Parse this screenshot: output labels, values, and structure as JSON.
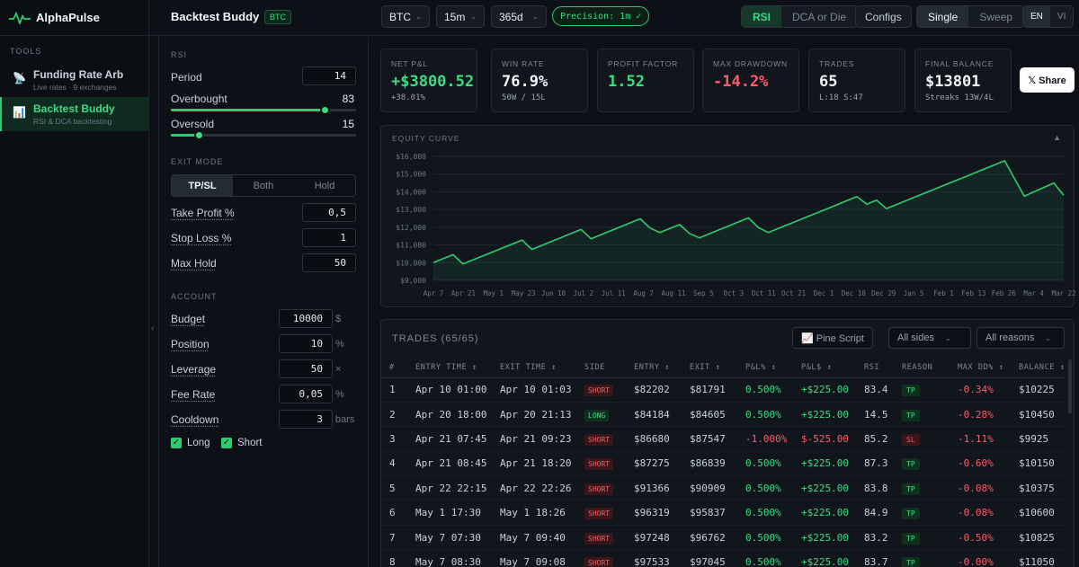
{
  "brand": {
    "name": "AlphaPulse"
  },
  "sidebar": {
    "section": "TOOLS",
    "items": [
      {
        "label": "Funding Rate Arb",
        "sub": "Live rates · 9 exchanges",
        "icon": "satellite-icon"
      },
      {
        "label": "Backtest Buddy",
        "sub": "RSI & DCA backtesting",
        "icon": "bar-chart-icon"
      }
    ]
  },
  "header": {
    "title": "Backtest Buddy",
    "badge": "BTC",
    "asset": "BTC",
    "interval": "15m",
    "range": "365d",
    "precision": "Precision: 1m ✓",
    "strategy_tabs": [
      "RSI",
      "DCA or Die"
    ],
    "configs": "Configs",
    "mode_tabs": [
      "Single",
      "Sweep"
    ],
    "lang_tabs": [
      "EN",
      "VI"
    ]
  },
  "params": {
    "rsi_section": "RSI",
    "period_label": "Period",
    "period": "14",
    "overbought_label": "Overbought",
    "overbought": "83",
    "oversold_label": "Oversold",
    "oversold": "15",
    "overbought_level": 0.83,
    "oversold_level": 0.15,
    "exit_section": "EXIT MODE",
    "exit_modes": [
      "TP/SL",
      "Both",
      "Hold"
    ],
    "tp_label": "Take Profit %",
    "tp": "0,5",
    "sl_label": "Stop Loss %",
    "sl": "1",
    "hold_label": "Max Hold",
    "hold": "50",
    "account_section": "ACCOUNT",
    "budget_label": "Budget",
    "budget": "10000",
    "budget_unit": "$",
    "position_label": "Position",
    "position": "10",
    "position_unit": "%",
    "leverage_label": "Leverage",
    "leverage": "50",
    "leverage_unit": "×",
    "fee_label": "Fee Rate",
    "fee": "0,05",
    "fee_unit": "%",
    "cooldown_label": "Cooldown",
    "cooldown": "3",
    "cooldown_unit": "bars",
    "long_label": "Long",
    "short_label": "Short"
  },
  "stats": [
    {
      "label": "NET P&L",
      "value": "+$3800.52",
      "sub": "+38.01%",
      "tone": "green"
    },
    {
      "label": "WIN RATE",
      "value": "76.9%",
      "sub": "50W / 15L",
      "tone": "white"
    },
    {
      "label": "PROFIT FACTOR",
      "value": "1.52",
      "sub": "",
      "tone": "green"
    },
    {
      "label": "MAX DRAWDOWN",
      "value": "-14.2%",
      "sub": "",
      "tone": "red"
    },
    {
      "label": "TRADES",
      "value": "65",
      "sub": "L:18 S:47",
      "tone": "white"
    },
    {
      "label": "FINAL BALANCE",
      "value": "$13801",
      "sub": "Streaks 13W/4L",
      "tone": "white"
    }
  ],
  "share": "𝕏 Share",
  "equity": {
    "title": "EQUITY CURVE",
    "toggle": "▲"
  },
  "chart_data": {
    "type": "area",
    "title": "EQUITY CURVE",
    "xlabel": "",
    "ylabel": "",
    "ylim": [
      9000,
      16000
    ],
    "yticks": [
      "$16,000",
      "$15,000",
      "$14,000",
      "$13,000",
      "$12,000",
      "$11,000",
      "$10,000",
      "$9,000"
    ],
    "xticks": [
      "Apr 7",
      "Apr 21",
      "May 1",
      "May 23",
      "Jun 10",
      "Jul 2",
      "Jul 11",
      "Aug 7",
      "Aug 11",
      "Sep 5",
      "Oct 3",
      "Oct 11",
      "Oct 21",
      "Dec 1",
      "Dec 10",
      "Dec 29",
      "Jan 5",
      "Feb 1",
      "Feb 13",
      "Feb 26",
      "Mar 4",
      "Mar 22"
    ],
    "x": [
      0,
      1,
      2,
      3,
      4,
      5,
      6,
      7,
      8,
      9,
      10,
      11,
      12,
      13,
      14,
      15,
      16,
      17,
      18,
      19,
      20,
      21,
      22,
      23,
      24,
      25,
      26,
      27,
      28,
      29,
      30,
      31,
      32,
      33,
      34,
      35,
      36,
      37,
      38,
      39,
      40,
      41,
      42,
      43,
      44,
      45,
      46,
      47,
      48,
      49,
      50,
      51,
      52,
      53,
      54,
      55,
      56,
      57,
      58,
      59,
      60,
      61,
      62,
      63,
      64
    ],
    "values": [
      10000,
      10225,
      10450,
      9925,
      10150,
      10375,
      10600,
      10825,
      11050,
      11275,
      10750,
      10975,
      11200,
      11425,
      11650,
      11875,
      11350,
      11575,
      11800,
      12025,
      12250,
      12475,
      11950,
      11700,
      11925,
      12150,
      11650,
      11400,
      11625,
      11850,
      12075,
      12300,
      12525,
      11975,
      11700,
      11925,
      12150,
      12375,
      12600,
      12825,
      13050,
      13275,
      13500,
      13725,
      13300,
      13525,
      13050,
      13275,
      13500,
      13725,
      13950,
      14175,
      14400,
      14625,
      14850,
      15075,
      15300,
      15525,
      15750,
      14750,
      13750,
      14000,
      14250,
      14500,
      13801
    ]
  },
  "trades": {
    "title": "TRADES (65/65)",
    "pine": "📈 Pine Script",
    "sides": "All sides",
    "reasons": "All reasons",
    "columns": [
      "#",
      "ENTRY TIME ↕",
      "EXIT TIME ↕",
      "SIDE",
      "ENTRY ↕",
      "EXIT ↕",
      "P&L% ↕",
      "P&L$ ↕",
      "RSI",
      "REASON",
      "MAX DD% ↕",
      "BALANCE ↕"
    ],
    "rows": [
      [
        "1",
        "Apr 10 01:00",
        "Apr 10 01:03",
        "SHORT",
        "$82202",
        "$81791",
        "0.500%",
        "+$225.00",
        "83.4",
        "TP",
        "-0.34%",
        "$10225"
      ],
      [
        "2",
        "Apr 20 18:00",
        "Apr 20 21:13",
        "LONG",
        "$84184",
        "$84605",
        "0.500%",
        "+$225.00",
        "14.5",
        "TP",
        "-0.28%",
        "$10450"
      ],
      [
        "3",
        "Apr 21 07:45",
        "Apr 21 09:23",
        "SHORT",
        "$86680",
        "$87547",
        "-1.000%",
        "$-525.00",
        "85.2",
        "SL",
        "-1.11%",
        "$9925"
      ],
      [
        "4",
        "Apr 21 08:45",
        "Apr 21 18:20",
        "SHORT",
        "$87275",
        "$86839",
        "0.500%",
        "+$225.00",
        "87.3",
        "TP",
        "-0.60%",
        "$10150"
      ],
      [
        "5",
        "Apr 22 22:15",
        "Apr 22 22:26",
        "SHORT",
        "$91366",
        "$90909",
        "0.500%",
        "+$225.00",
        "83.8",
        "TP",
        "-0.08%",
        "$10375"
      ],
      [
        "6",
        "May 1 17:30",
        "May 1 18:26",
        "SHORT",
        "$96319",
        "$95837",
        "0.500%",
        "+$225.00",
        "84.9",
        "TP",
        "-0.08%",
        "$10600"
      ],
      [
        "7",
        "May 7 07:30",
        "May 7 09:40",
        "SHORT",
        "$97248",
        "$96762",
        "0.500%",
        "+$225.00",
        "83.2",
        "TP",
        "-0.50%",
        "$10825"
      ],
      [
        "8",
        "May 7 08:30",
        "May 7 09:08",
        "SHORT",
        "$97533",
        "$97045",
        "0.500%",
        "+$225.00",
        "83.7",
        "TP",
        "-0.00%",
        "$11050"
      ]
    ]
  },
  "colors": {
    "accent": "#2ecc71",
    "negative": "#ff5a6a",
    "bg": "#0d1117",
    "panel": "#11161d"
  }
}
